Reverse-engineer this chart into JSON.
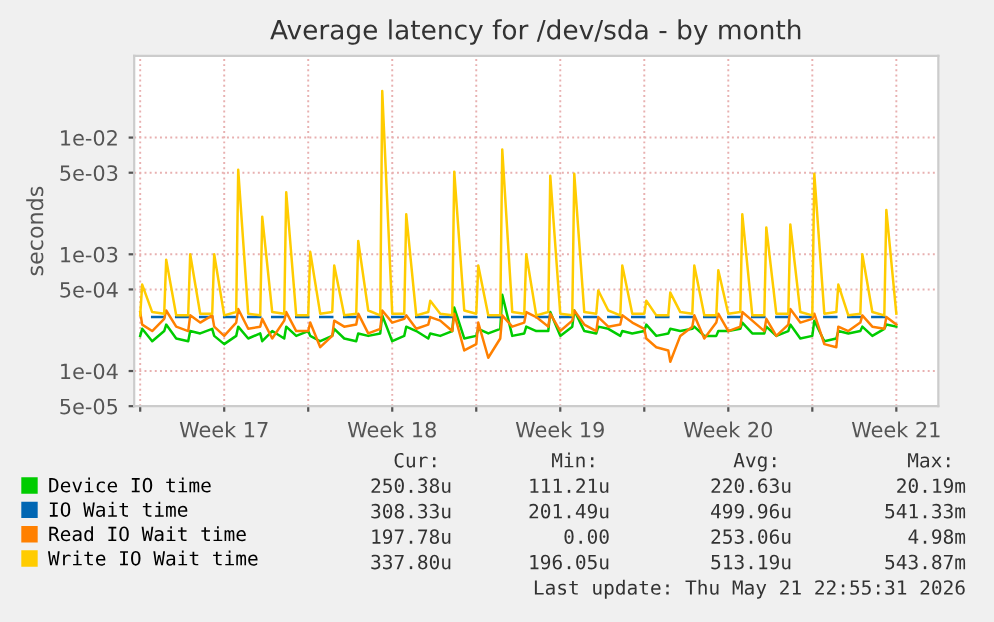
{
  "chart_data": {
    "type": "line",
    "title": "Average latency for /dev/sda - by month",
    "ylabel": "seconds",
    "log": "y",
    "grid": true,
    "legend": "bottom",
    "xlim": [
      "2026-04-19T18:00",
      "2026-05-23T06:00"
    ],
    "xticks": [
      {
        "value": "2026-04-20T00:00",
        "label": null
      },
      {
        "value": "2026-04-23T12:00",
        "label": "Week 17"
      },
      {
        "value": "2026-04-27T00:00",
        "label": null
      },
      {
        "value": "2026-04-30T12:00",
        "label": "Week 18"
      },
      {
        "value": "2026-05-04T00:00",
        "label": null
      },
      {
        "value": "2026-05-07T12:00",
        "label": "Week 19"
      },
      {
        "value": "2026-05-11T00:00",
        "label": null
      },
      {
        "value": "2026-05-14T12:00",
        "label": "Week 20"
      },
      {
        "value": "2026-05-18T00:00",
        "label": null
      },
      {
        "value": "2026-05-21T12:00",
        "label": "Week 21"
      }
    ],
    "ylim": [
      5e-05,
      0.05
    ],
    "yticks": [
      {
        "value": 5e-05,
        "label": "5e-05"
      },
      {
        "value": 0.0001,
        "label": "1e-04"
      },
      {
        "value": 0.0005,
        "label": "5e-04"
      },
      {
        "value": 0.001,
        "label": "1e-03"
      },
      {
        "value": 0.005,
        "label": "5e-03"
      },
      {
        "value": 0.01,
        "label": "1e-02"
      }
    ],
    "x": [
      "2026-04-20T00:00",
      "2026-04-20T02:00",
      "2026-04-20T12:00",
      "2026-04-21T00:00",
      "2026-04-21T02:00",
      "2026-04-21T12:00",
      "2026-04-22T00:00",
      "2026-04-22T02:00",
      "2026-04-22T12:00",
      "2026-04-23T00:00",
      "2026-04-23T02:00",
      "2026-04-23T12:00",
      "2026-04-24T00:00",
      "2026-04-24T02:00",
      "2026-04-24T12:00",
      "2026-04-25T00:00",
      "2026-04-25T02:00",
      "2026-04-25T12:00",
      "2026-04-26T00:00",
      "2026-04-26T02:00",
      "2026-04-26T12:00",
      "2026-04-27T00:00",
      "2026-04-27T02:00",
      "2026-04-27T12:00",
      "2026-04-28T00:00",
      "2026-04-28T02:00",
      "2026-04-28T12:00",
      "2026-04-29T00:00",
      "2026-04-29T02:00",
      "2026-04-29T12:00",
      "2026-04-30T00:00",
      "2026-04-30T02:00",
      "2026-04-30T12:00",
      "2026-05-01T00:00",
      "2026-05-01T02:00",
      "2026-05-01T12:00",
      "2026-05-02T00:00",
      "2026-05-02T02:00",
      "2026-05-02T12:00",
      "2026-05-03T00:00",
      "2026-05-03T02:00",
      "2026-05-03T12:00",
      "2026-05-04T00:00",
      "2026-05-04T02:00",
      "2026-05-04T12:00",
      "2026-05-05T00:00",
      "2026-05-05T02:00",
      "2026-05-05T12:00",
      "2026-05-06T00:00",
      "2026-05-06T02:00",
      "2026-05-06T12:00",
      "2026-05-07T00:00",
      "2026-05-07T02:00",
      "2026-05-07T12:00",
      "2026-05-08T00:00",
      "2026-05-08T02:00",
      "2026-05-08T12:00",
      "2026-05-09T00:00",
      "2026-05-09T02:00",
      "2026-05-09T12:00",
      "2026-05-10T00:00",
      "2026-05-10T02:00",
      "2026-05-10T12:00",
      "2026-05-11T00:00",
      "2026-05-11T02:00",
      "2026-05-11T12:00",
      "2026-05-12T00:00",
      "2026-05-12T02:00",
      "2026-05-12T12:00",
      "2026-05-13T00:00",
      "2026-05-13T02:00",
      "2026-05-13T12:00",
      "2026-05-14T00:00",
      "2026-05-14T02:00",
      "2026-05-14T12:00",
      "2026-05-15T00:00",
      "2026-05-15T02:00",
      "2026-05-15T12:00",
      "2026-05-16T00:00",
      "2026-05-16T02:00",
      "2026-05-16T12:00",
      "2026-05-17T00:00",
      "2026-05-17T02:00",
      "2026-05-17T12:00",
      "2026-05-18T00:00",
      "2026-05-18T02:00",
      "2026-05-18T12:00",
      "2026-05-19T00:00",
      "2026-05-19T02:00",
      "2026-05-19T12:00",
      "2026-05-20T00:00",
      "2026-05-20T02:00",
      "2026-05-20T12:00",
      "2026-05-21T00:00",
      "2026-05-21T02:00",
      "2026-05-21T12:00"
    ],
    "series": [
      {
        "name": "Device IO time",
        "color": "#00cc00",
        "values": [
          0.0002,
          0.00023,
          0.00018,
          0.00022,
          0.00025,
          0.00019,
          0.00018,
          0.00022,
          0.00021,
          0.00023,
          0.0002,
          0.00017,
          0.0002,
          0.00024,
          0.00019,
          0.00021,
          0.00018,
          0.00022,
          0.00019,
          0.00024,
          0.0002,
          0.00022,
          0.0002,
          0.00018,
          0.0002,
          0.00023,
          0.00019,
          0.00018,
          0.00021,
          0.0002,
          0.00021,
          0.0003,
          0.00018,
          0.0002,
          0.00024,
          0.00022,
          0.00019,
          0.00021,
          0.0002,
          0.00022,
          0.00035,
          0.00019,
          0.0002,
          0.00023,
          0.00021,
          0.00023,
          0.00045,
          0.0002,
          0.00021,
          0.00024,
          0.00022,
          0.00022,
          0.00032,
          0.0002,
          0.00024,
          0.00033,
          0.00022,
          0.00021,
          0.00024,
          0.00023,
          0.0002,
          0.00022,
          0.00021,
          0.00022,
          0.00025,
          0.0002,
          0.00021,
          0.00023,
          0.00022,
          0.00023,
          0.00024,
          0.0002,
          0.0002,
          0.00022,
          0.00022,
          0.00023,
          0.00026,
          0.00021,
          0.00021,
          0.00024,
          0.0002,
          0.00022,
          0.00025,
          0.00019,
          0.0002,
          0.00027,
          0.00018,
          0.00019,
          0.00022,
          0.00021,
          0.00022,
          0.00024,
          0.0002,
          0.00023,
          0.00025,
          0.00024
        ]
      },
      {
        "name": "IO Wait time",
        "color": "#0066b3",
        "values": [
          null,
          null,
          0.00029,
          0.00029,
          null,
          0.00029,
          0.00029,
          null,
          0.00029,
          0.00029,
          null,
          0.00029,
          0.00029,
          null,
          0.00029,
          0.00029,
          null,
          0.00029,
          0.00029,
          null,
          0.00029,
          0.00029,
          null,
          0.00029,
          0.00029,
          null,
          0.00029,
          0.00029,
          null,
          0.00029,
          0.00029,
          null,
          0.00029,
          0.00029,
          null,
          0.00029,
          0.00029,
          null,
          0.00029,
          0.00029,
          null,
          0.00029,
          0.00029,
          null,
          0.00029,
          0.00029,
          null,
          0.00029,
          0.00029,
          null,
          0.00029,
          0.00029,
          null,
          0.00029,
          0.00029,
          null,
          0.00029,
          0.00029,
          null,
          0.00029,
          0.00029,
          null,
          0.00029,
          0.00029,
          null,
          0.00029,
          0.00029,
          null,
          0.00029,
          0.00029,
          null,
          0.00029,
          0.00029,
          null,
          0.00029,
          0.00029,
          null,
          0.00029,
          0.00029,
          null,
          0.00029,
          0.00029,
          null,
          0.00029,
          0.00029,
          null,
          0.00029,
          0.00029,
          null,
          0.00029,
          0.00029,
          null,
          0.00029,
          0.00029,
          null,
          null
        ]
      },
      {
        "name": "Read IO Wait time",
        "color": "#ff8000",
        "values": [
          0.00032,
          0.00025,
          0.00022,
          0.00028,
          0.00033,
          0.00024,
          0.00022,
          0.0003,
          0.00026,
          0.0003,
          0.00024,
          0.0002,
          0.00026,
          0.00034,
          0.00023,
          0.00024,
          0.00028,
          0.00019,
          0.00027,
          0.00032,
          0.00022,
          0.00022,
          0.00026,
          0.00016,
          0.0002,
          0.00027,
          0.00024,
          0.00025,
          0.00031,
          0.00021,
          0.00023,
          0.00033,
          0.00026,
          0.00028,
          0.0003,
          0.00023,
          0.00025,
          0.00029,
          0.00027,
          0.00022,
          0.00031,
          0.00015,
          0.00017,
          0.00026,
          0.00013,
          0.00019,
          0.0003,
          0.00024,
          0.00026,
          0.00032,
          0.00029,
          0.00024,
          0.00031,
          0.00022,
          0.00027,
          0.00033,
          0.00025,
          0.00022,
          0.00029,
          0.00024,
          0.00025,
          0.0003,
          0.00026,
          0.00023,
          0.00019,
          0.00016,
          0.00015,
          0.00012,
          0.0002,
          0.00024,
          0.0003,
          0.00019,
          0.00026,
          0.00031,
          0.00022,
          0.00024,
          0.00032,
          0.00027,
          0.00022,
          0.00028,
          0.0002,
          0.00025,
          0.00034,
          0.00026,
          0.00028,
          0.00031,
          0.00017,
          0.00016,
          0.00024,
          0.00022,
          0.00026,
          0.0003,
          0.00024,
          0.00023,
          0.00029,
          0.00025
        ]
      },
      {
        "name": "Write IO Wait time",
        "color": "#ffcc00",
        "values": [
          0.0003,
          0.00055,
          0.00032,
          0.00031,
          0.0009,
          0.0003,
          0.0003,
          0.001,
          0.00031,
          0.00031,
          0.001,
          0.0003,
          0.00032,
          0.0053,
          0.00031,
          0.0003,
          0.0021,
          0.00032,
          0.00031,
          0.0034,
          0.0003,
          0.0003,
          0.00105,
          0.00031,
          0.00032,
          0.0008,
          0.0003,
          0.00031,
          0.0013,
          0.00033,
          0.0003,
          0.025,
          0.00031,
          0.00031,
          0.0022,
          0.0003,
          0.00032,
          0.0004,
          0.00031,
          0.0003,
          0.0051,
          0.00033,
          0.00031,
          0.0008,
          0.0003,
          0.0003,
          0.0079,
          0.00032,
          0.00031,
          0.001,
          0.0003,
          0.00032,
          0.0047,
          0.00031,
          0.0003,
          0.0049,
          0.00032,
          0.00031,
          0.00049,
          0.00033,
          0.0003,
          0.0008,
          0.00031,
          0.00031,
          0.0004,
          0.0003,
          0.0003,
          0.00047,
          0.00032,
          0.00031,
          0.0008,
          0.0003,
          0.0003,
          0.00073,
          0.00031,
          0.00032,
          0.0022,
          0.0003,
          0.0003,
          0.0017,
          0.00031,
          0.00031,
          0.0018,
          0.00032,
          0.0003,
          0.0049,
          0.00031,
          0.00032,
          0.00055,
          0.0003,
          0.00031,
          0.001,
          0.00032,
          0.0003,
          0.0024,
          0.00031
        ]
      }
    ],
    "annotations": [
      "Cur:",
      "Min:",
      "Avg:",
      "Max:",
      "250.38u",
      "111.21u",
      "220.63u",
      "20.19m",
      "308.33u",
      "201.49u",
      "499.96u",
      "541.33m",
      "197.78u",
      "0.00",
      "253.06u",
      "4.98m",
      "337.80u",
      "196.05u",
      "513.19u",
      "543.87m",
      "Last update: Thu May 21 22:55:31 2026"
    ]
  }
}
